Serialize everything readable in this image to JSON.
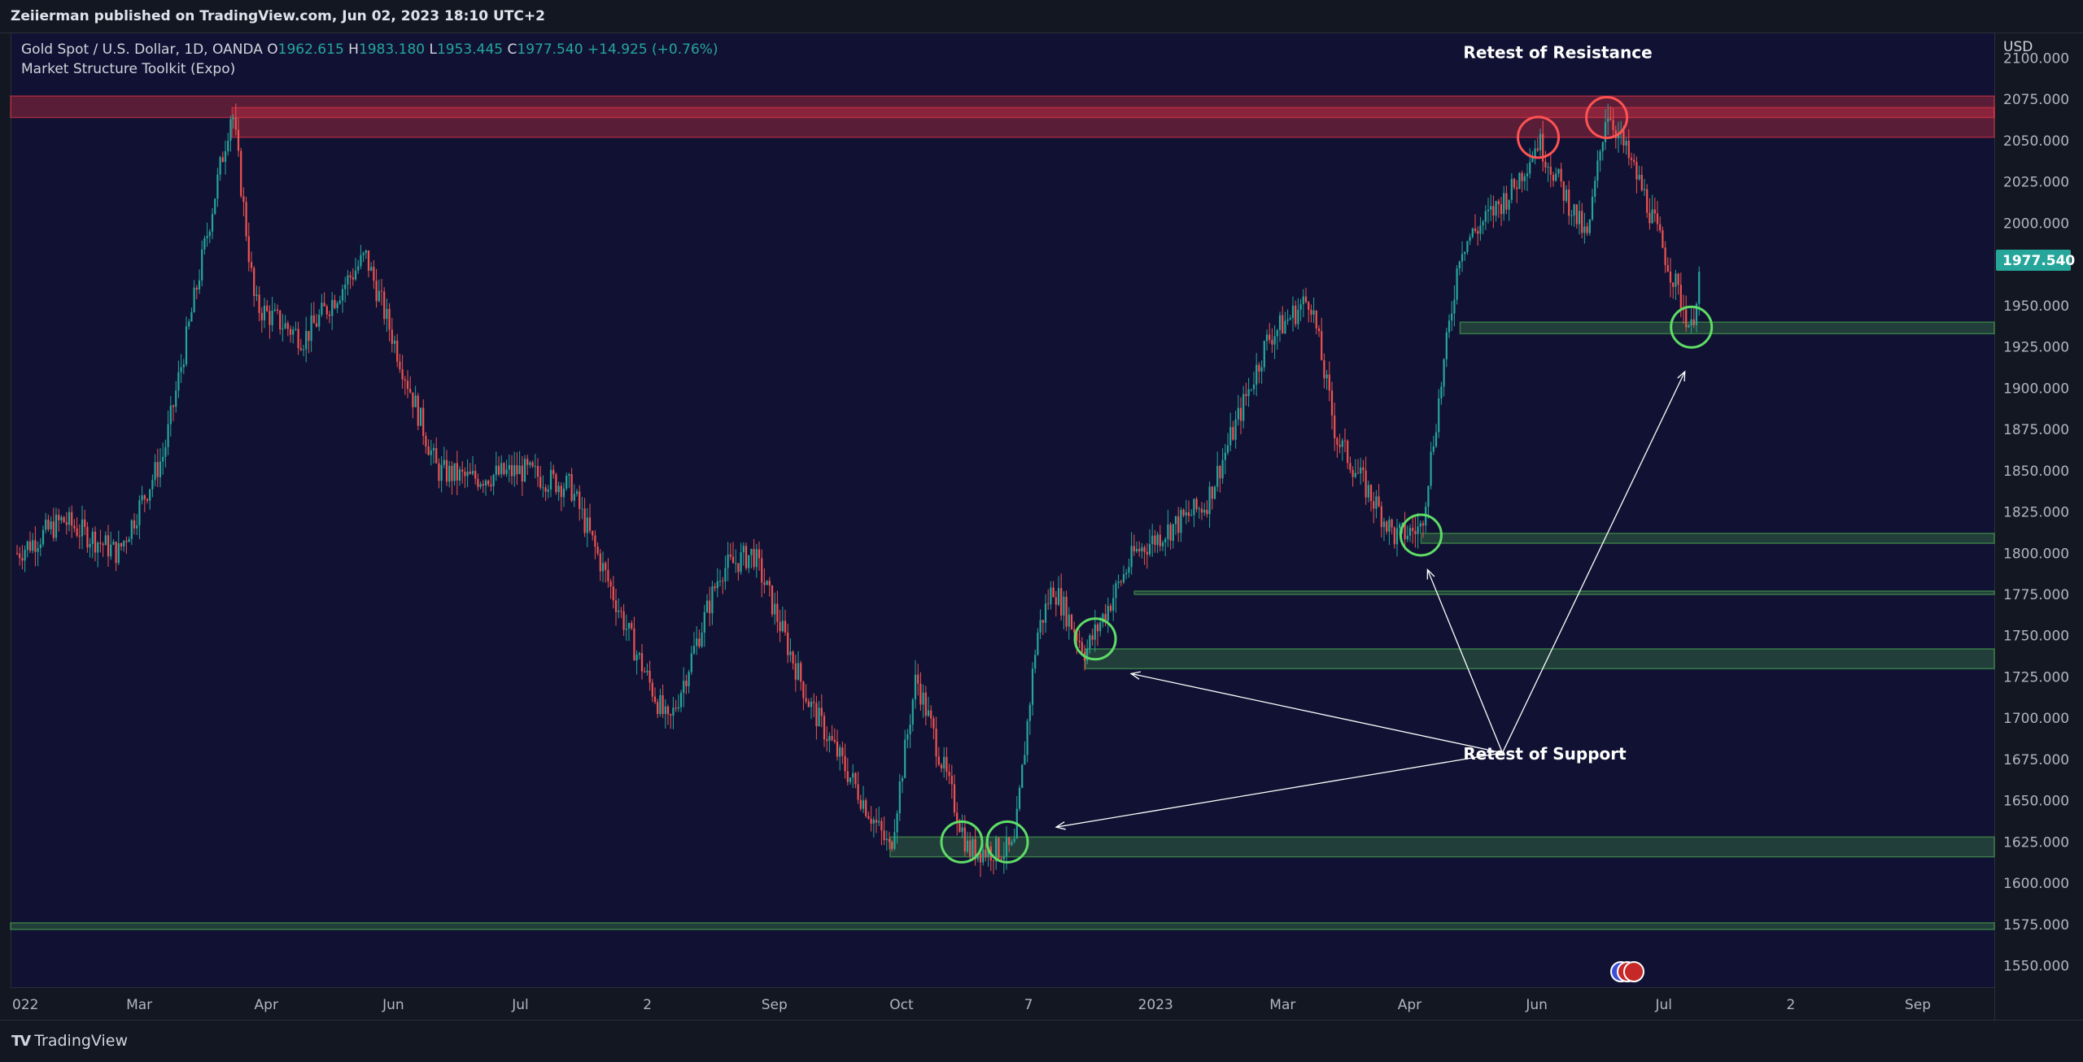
{
  "header": {
    "publisher_line": "Zeiierman published on TradingView.com, Jun 02, 2023 18:10 UTC+2"
  },
  "legend": {
    "symbol": "Gold Spot / U.S. Dollar, 1D, OANDA",
    "o_label": "O",
    "o_value": "1962.615",
    "h_label": "H",
    "h_value": "1983.180",
    "l_label": "L",
    "l_value": "1953.445",
    "c_label": "C",
    "c_value": "1977.540",
    "change": "+14.925 (+0.76%)",
    "indicator": "Market Structure Toolkit (Expo)"
  },
  "footer": {
    "brand": "TradingView"
  },
  "colors": {
    "up": "#26a69a",
    "down": "#ef5350",
    "resistance": "#f23645",
    "support": "#4caf50",
    "background": "#111233",
    "annotation": "#ffffff",
    "last_price_bg": "#26a69a"
  },
  "chart_data": {
    "type": "candlestick",
    "currency": "USD",
    "price_ticks": [
      1550,
      1575,
      1600,
      1625,
      1650,
      1675,
      1700,
      1725,
      1750,
      1775,
      1800,
      1825,
      1850,
      1875,
      1900,
      1925,
      1950,
      1975,
      2000,
      2025,
      2050,
      2075,
      2100
    ],
    "ylim": [
      1537,
      2115
    ],
    "last_price": "1977.540",
    "time_labels": [
      "022",
      "Mar",
      "Apr",
      "Jun",
      "Jul",
      "2",
      "Sep",
      "Oct",
      "7",
      "2023",
      "Mar",
      "Apr",
      "Jun",
      "Jul",
      "2",
      "Sep"
    ],
    "price_path": [
      [
        "2022-01-01",
        1800
      ],
      [
        "2022-01-15",
        1820
      ],
      [
        "2022-02-01",
        1800
      ],
      [
        "2022-02-15",
        1860
      ],
      [
        "2022-03-08",
        2070
      ],
      [
        "2022-03-15",
        1950
      ],
      [
        "2022-03-30",
        1930
      ],
      [
        "2022-04-18",
        1980
      ],
      [
        "2022-05-10",
        1850
      ],
      [
        "2022-05-20",
        1845
      ],
      [
        "2022-06-05",
        1850
      ],
      [
        "2022-06-20",
        1840
      ],
      [
        "2022-07-10",
        1740
      ],
      [
        "2022-07-20",
        1695
      ],
      [
        "2022-08-05",
        1790
      ],
      [
        "2022-08-15",
        1800
      ],
      [
        "2022-09-01",
        1710
      ],
      [
        "2022-09-15",
        1660
      ],
      [
        "2022-09-26",
        1620
      ],
      [
        "2022-10-04",
        1725
      ],
      [
        "2022-10-20",
        1620
      ],
      [
        "2022-11-03",
        1620
      ],
      [
        "2022-11-10",
        1750
      ],
      [
        "2022-11-15",
        1780
      ],
      [
        "2022-11-25",
        1740
      ],
      [
        "2022-12-10",
        1800
      ],
      [
        "2023-01-01",
        1830
      ],
      [
        "2023-01-20",
        1930
      ],
      [
        "2023-02-02",
        1955
      ],
      [
        "2023-02-10",
        1870
      ],
      [
        "2023-02-28",
        1810
      ],
      [
        "2023-03-08",
        1815
      ],
      [
        "2023-03-20",
        1985
      ],
      [
        "2023-04-05",
        2020
      ],
      [
        "2023-04-13",
        2050
      ],
      [
        "2023-04-28",
        1990
      ],
      [
        "2023-05-04",
        2070
      ],
      [
        "2023-05-15",
        2020
      ],
      [
        "2023-05-30",
        1935
      ],
      [
        "2023-06-02",
        1977.54
      ]
    ],
    "resistance_zones": [
      {
        "from": "2021-12-30",
        "to": "2023-08-31",
        "low": 2064,
        "high": 2077
      },
      {
        "from": "2022-03-08",
        "to": "2023-08-31",
        "low": 2052,
        "high": 2070
      }
    ],
    "support_zones": [
      {
        "from": "2023-03-20",
        "to": "2023-08-31",
        "low": 1933,
        "high": 1940
      },
      {
        "from": "2023-03-08",
        "to": "2023-08-31",
        "low": 1806,
        "high": 1812
      },
      {
        "from": "2022-12-10",
        "to": "2023-08-31",
        "low": 1775,
        "high": 1777
      },
      {
        "from": "2022-11-25",
        "to": "2023-08-31",
        "low": 1730,
        "high": 1742
      },
      {
        "from": "2022-09-26",
        "to": "2023-08-31",
        "low": 1616,
        "high": 1628
      },
      {
        "from": "2021-12-30",
        "to": "2023-08-31",
        "low": 1572,
        "high": 1576
      }
    ],
    "annotations": [
      {
        "text": "Retest of Resistance",
        "date": "2023-04-19",
        "price": 2100
      },
      {
        "text": "Retest of Support",
        "date": "2023-04-15",
        "price": 1675
      }
    ],
    "circles": [
      {
        "date": "2023-04-13",
        "price": 2052,
        "color": "red"
      },
      {
        "date": "2023-05-04",
        "price": 2064,
        "color": "red"
      },
      {
        "date": "2022-10-18",
        "price": 1625,
        "color": "green"
      },
      {
        "date": "2022-11-01",
        "price": 1625,
        "color": "green"
      },
      {
        "date": "2022-11-28",
        "price": 1748,
        "color": "green"
      },
      {
        "date": "2023-03-08",
        "price": 1811,
        "color": "green"
      },
      {
        "date": "2023-05-30",
        "price": 1937,
        "color": "green"
      }
    ],
    "arrows": [
      {
        "from_date": "2023-04-02",
        "from_price": 1679,
        "to_date": "2022-12-09",
        "to_price": 1727
      },
      {
        "from_date": "2023-04-02",
        "from_price": 1679,
        "to_date": "2022-11-16",
        "to_price": 1634
      },
      {
        "from_date": "2023-04-02",
        "from_price": 1679,
        "to_date": "2023-03-10",
        "to_price": 1790
      },
      {
        "from_date": "2023-04-02",
        "from_price": 1679,
        "to_date": "2023-05-28",
        "to_price": 1910
      }
    ]
  }
}
